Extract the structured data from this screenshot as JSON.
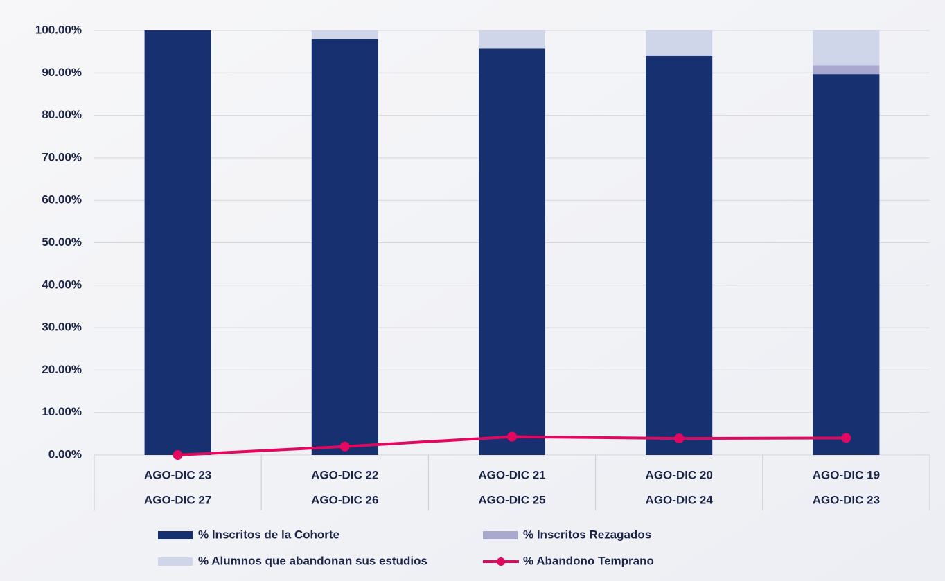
{
  "chart_data": {
    "type": "stacked_bar_line",
    "categories": [
      [
        "AGO-DIC 23",
        "AGO-DIC 27"
      ],
      [
        "AGO-DIC 22",
        "AGO-DIC 26"
      ],
      [
        "AGO-DIC 21",
        "AGO-DIC 25"
      ],
      [
        "AGO-DIC 20",
        "AGO-DIC 24"
      ],
      [
        "AGO-DIC 19",
        "AGO-DIC 23"
      ]
    ],
    "series": [
      {
        "name": "% Inscritos de la Cohorte",
        "color": "#17306f",
        "kind": "bar",
        "values": [
          100,
          98,
          95.7,
          94,
          89.7
        ]
      },
      {
        "name": "% Inscritos Rezagados",
        "color": "#a9a9cf",
        "kind": "bar",
        "values": [
          0,
          0,
          0,
          0,
          2.1
        ]
      },
      {
        "name": "% Alumnos que abandonan sus estudios",
        "color": "#cfd6ea",
        "kind": "bar",
        "values": [
          0,
          2,
          4.3,
          6,
          8.2
        ]
      },
      {
        "name": "% Abandono Temprano",
        "color": "#e3085f",
        "kind": "line",
        "values": [
          0,
          2,
          4.3,
          3.9,
          4.0
        ]
      }
    ],
    "ylim": [
      0,
      100
    ],
    "yticks": [
      {
        "value": 0,
        "label": "0.00%"
      },
      {
        "value": 10,
        "label": "10.00%"
      },
      {
        "value": 20,
        "label": "20.00%"
      },
      {
        "value": 30,
        "label": "30.00%"
      },
      {
        "value": 40,
        "label": "40.00%"
      },
      {
        "value": 50,
        "label": "50.00%"
      },
      {
        "value": 60,
        "label": "60.00%"
      },
      {
        "value": 70,
        "label": "70.00%"
      },
      {
        "value": 80,
        "label": "80.00%"
      },
      {
        "value": 90,
        "label": "90.00%"
      },
      {
        "value": 100,
        "label": "100.00%"
      }
    ],
    "grid": true
  }
}
